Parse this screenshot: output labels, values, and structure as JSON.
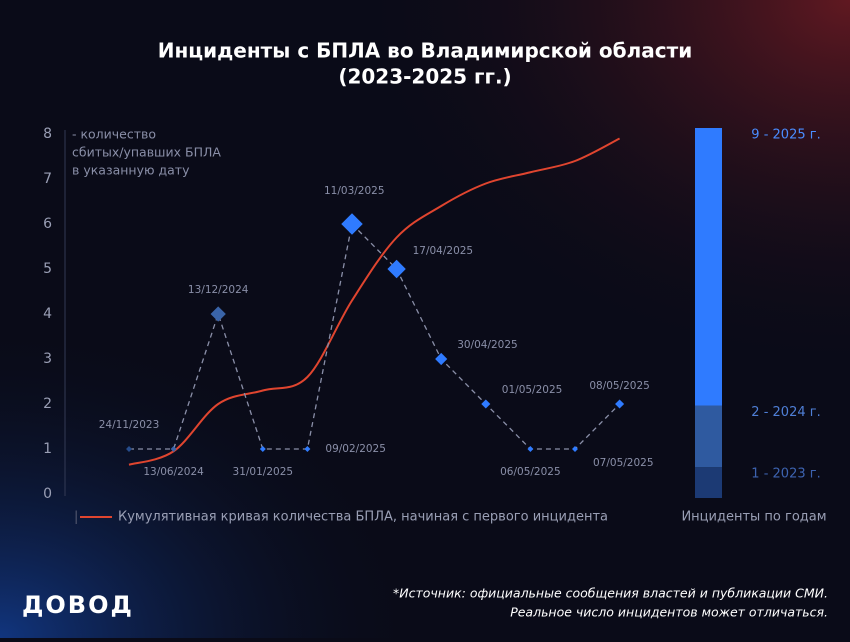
{
  "chart_data": [
    {
      "type": "line",
      "title": "Инциденты с БПЛА во Владимирской области",
      "subtitle": "(2023-2025 гг.)",
      "annotation": [
        "- количество",
        "сбитых/упавших БПЛА",
        "в указанную дату"
      ],
      "categories": [
        "24/11/2023",
        "13/06/2024",
        "13/12/2024",
        "31/01/2025",
        "09/02/2025",
        "11/03/2025",
        "17/04/2025",
        "30/04/2025",
        "01/05/2025",
        "06/05/2025",
        "07/05/2025",
        "08/05/2025"
      ],
      "ylim": [
        0,
        8
      ],
      "yticks": [
        0,
        1,
        2,
        3,
        4,
        5,
        6,
        7,
        8
      ],
      "series": [
        {
          "color": "#2f7bff",
          "values": [
            1,
            1,
            4,
            1,
            1,
            6,
            5,
            3,
            2,
            1,
            1,
            2
          ],
          "point_colors": [
            "#264c8c",
            "#3a64a8",
            "#3a64a8",
            "#2f7bff",
            "#2f7bff",
            "#2f7bff",
            "#2f7bff",
            "#2f7bff",
            "#2f7bff",
            "#2f7bff",
            "#2f7bff",
            "#2f7bff"
          ]
        },
        {
          "name": "Кумулятивная кривая количества БПЛА, начиная с первого инцидента",
          "color": "#e0452f",
          "values": [
            0.65,
            0.95,
            2.0,
            2.3,
            2.6,
            4.3,
            5.7,
            6.4,
            6.9,
            7.15,
            7.4,
            7.9
          ]
        }
      ]
    },
    {
      "type": "stacked-bar",
      "caption": "Инциденты по годам",
      "ylim": [
        0,
        12
      ],
      "values": [
        1,
        2,
        9
      ],
      "value_labels": [
        "1 - 2023 г.",
        "2 - 2024 г.",
        "9 - 2025 г."
      ],
      "colors": [
        "#1c3a74",
        "#2f5aa0",
        "#2f7bff"
      ],
      "label_colors": [
        "#3d63b0",
        "#4f7fd6",
        "#4a8cff"
      ]
    }
  ],
  "footer": {
    "logo": "ДОВОД",
    "source": [
      "*Источник: официальные сообщения властей и публикации СМИ.",
      "Реальное число инцидентов может отличаться."
    ]
  }
}
